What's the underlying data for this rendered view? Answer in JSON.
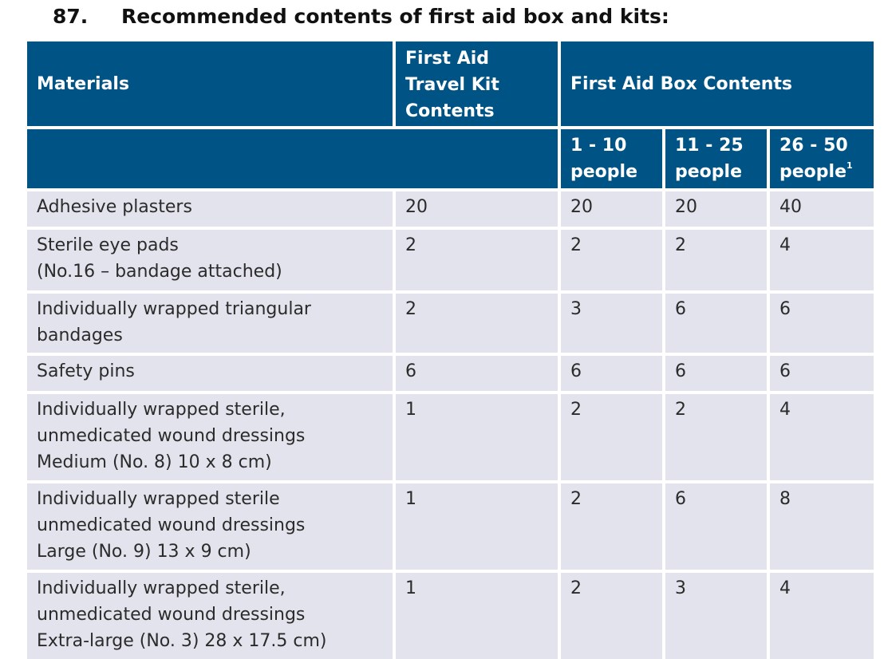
{
  "heading": {
    "number": "87.",
    "title": "Recommended contents of first aid box and kits:"
  },
  "table": {
    "headers": {
      "materials": "Materials",
      "travel_kit": "First Aid\nTravel Kit\nContents",
      "box_contents": "First Aid Box Contents",
      "col_1_10": "1 - 10\npeople",
      "col_11_25": "11 - 25\npeople",
      "col_26_50": "26 - 50\npeople",
      "col_26_50_footnote": "1"
    },
    "rows": [
      {
        "material": "Adhesive plasters",
        "travel": "20",
        "c1": "20",
        "c2": "20",
        "c3": "40"
      },
      {
        "material": "Sterile eye pads\n(No.16 – bandage attached)",
        "travel": "2",
        "c1": "2",
        "c2": "2",
        "c3": "4"
      },
      {
        "material": "Individually wrapped triangular\nbandages",
        "travel": "2",
        "c1": "3",
        "c2": "6",
        "c3": "6"
      },
      {
        "material": "Safety pins",
        "travel": "6",
        "c1": "6",
        "c2": "6",
        "c3": "6"
      },
      {
        "material": "Individually wrapped sterile,\nunmedicated wound dressings\nMedium (No. 8) 10 x 8 cm)",
        "travel": "1",
        "c1": "2",
        "c2": "2",
        "c3": "4"
      },
      {
        "material": "Individually wrapped sterile\nunmedicated wound dressings\nLarge (No. 9) 13 x 9 cm)",
        "travel": "1",
        "c1": "2",
        "c2": "6",
        "c3": "8"
      },
      {
        "material": "Individually wrapped sterile,\nunmedicated wound dressings\nExtra-large (No. 3) 28 x 17.5 cm)",
        "travel": "1",
        "c1": "2",
        "c2": "3",
        "c3": "4"
      }
    ]
  },
  "colors": {
    "header_bg": "#005485",
    "row_bg": "#e2e3ec",
    "text": "#2b2b2b"
  }
}
